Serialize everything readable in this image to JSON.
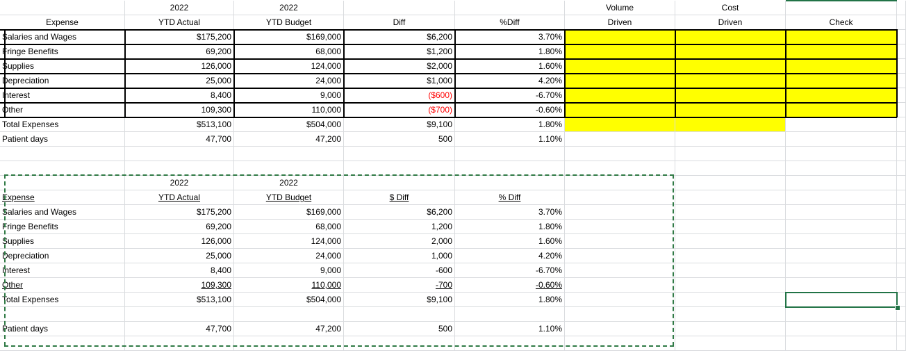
{
  "top_table": {
    "headers_row1": {
      "actual_year": "2022",
      "budget_year": "2022",
      "volume": "Volume",
      "cost": "Cost"
    },
    "headers_row2": {
      "expense": "Expense",
      "actual": "YTD Actual",
      "budget": "YTD Budget",
      "diff": "Diff",
      "pct": "%Diff",
      "volume_driven": "Driven",
      "cost_driven": "Driven",
      "check": "Check"
    },
    "rows": [
      {
        "label": "Salaries and Wages",
        "actual": "$175,200",
        "budget": "$169,000",
        "diff": "$6,200",
        "pct": "3.70%"
      },
      {
        "label": "Fringe Benefits",
        "actual": "69,200",
        "budget": "68,000",
        "diff": "$1,200",
        "pct": "1.80%"
      },
      {
        "label": "Supplies",
        "actual": "126,000",
        "budget": "124,000",
        "diff": "$2,000",
        "pct": "1.60%"
      },
      {
        "label": "Depreciation",
        "actual": "25,000",
        "budget": "24,000",
        "diff": "$1,000",
        "pct": "4.20%"
      },
      {
        "label": "Interest",
        "actual": "8,400",
        "budget": "9,000",
        "diff": "($600)",
        "pct": "-6.70%"
      },
      {
        "label": "Other",
        "actual": "109,300",
        "budget": "110,000",
        "diff": "($700)",
        "pct": "-0.60%"
      },
      {
        "label": "Total Expenses",
        "actual": "$513,100",
        "budget": "$504,000",
        "diff": "$9,100",
        "pct": "1.80%"
      },
      {
        "label": "Patient days",
        "actual": "47,700",
        "budget": "47,200",
        "diff": "500",
        "pct": "1.10%"
      }
    ],
    "highlight_color": "#ffff00",
    "negative_color": "#ff0000"
  },
  "bottom_table": {
    "headers_row1": {
      "actual_year": "2022",
      "budget_year": "2022"
    },
    "headers_row2": {
      "expense": "Expense",
      "actual": "YTD Actual",
      "budget": "YTD Budget",
      "diff": "$ Diff",
      "pct": "% Diff"
    },
    "rows": [
      {
        "label": "Salaries and Wages",
        "actual": "$175,200",
        "budget": "$169,000",
        "diff": "$6,200",
        "pct": "3.70%"
      },
      {
        "label": "Fringe Benefits",
        "actual": "69,200",
        "budget": "68,000",
        "diff": "1,200",
        "pct": "1.80%"
      },
      {
        "label": "Supplies",
        "actual": "126,000",
        "budget": "124,000",
        "diff": "2,000",
        "pct": "1.60%"
      },
      {
        "label": "Depreciation",
        "actual": "25,000",
        "budget": "24,000",
        "diff": "1,000",
        "pct": "4.20%"
      },
      {
        "label": "Interest",
        "actual": "8,400",
        "budget": "9,000",
        "diff": "-600",
        "pct": "-6.70%"
      },
      {
        "label": "Other",
        "actual": "109,300",
        "budget": "110,000",
        "diff": "-700",
        "pct": "-0.60%"
      },
      {
        "label": "Total Expenses",
        "actual": "$513,100",
        "budget": "$504,000",
        "diff": "$9,100",
        "pct": "1.80%"
      },
      {
        "label": "Patient days",
        "actual": "47,700",
        "budget": "47,200",
        "diff": "500",
        "pct": "1.10%"
      }
    ],
    "copy_border_color": "#2f7a45",
    "selection_color": "#217346"
  }
}
